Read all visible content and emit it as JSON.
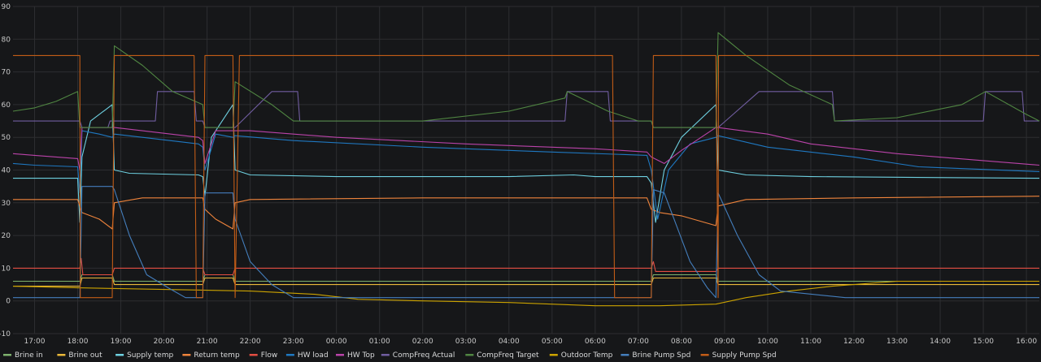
{
  "chart_data": {
    "type": "line",
    "title": "",
    "xlabel": "",
    "ylabel": "",
    "ylim": [
      -10,
      90
    ],
    "yticks": [
      -10,
      0,
      10,
      20,
      30,
      40,
      50,
      60,
      70,
      80,
      90
    ],
    "xlim": [
      16.5,
      40.3
    ],
    "xticks": [
      {
        "x": 17,
        "label": "17:00"
      },
      {
        "x": 18,
        "label": "18:00"
      },
      {
        "x": 19,
        "label": "19:00"
      },
      {
        "x": 20,
        "label": "20:00"
      },
      {
        "x": 21,
        "label": "21:00"
      },
      {
        "x": 22,
        "label": "22:00"
      },
      {
        "x": 23,
        "label": "23:00"
      },
      {
        "x": 24,
        "label": "00:00"
      },
      {
        "x": 25,
        "label": "01:00"
      },
      {
        "x": 26,
        "label": "02:00"
      },
      {
        "x": 27,
        "label": "03:00"
      },
      {
        "x": 28,
        "label": "04:00"
      },
      {
        "x": 29,
        "label": "05:00"
      },
      {
        "x": 30,
        "label": "06:00"
      },
      {
        "x": 31,
        "label": "07:00"
      },
      {
        "x": 32,
        "label": "08:00"
      },
      {
        "x": 33,
        "label": "09:00"
      },
      {
        "x": 34,
        "label": "10:00"
      },
      {
        "x": 35,
        "label": "11:00"
      },
      {
        "x": 36,
        "label": "12:00"
      },
      {
        "x": 37,
        "label": "13:00"
      },
      {
        "x": 38,
        "label": "14:00"
      },
      {
        "x": 39,
        "label": "15:00"
      },
      {
        "x": 40,
        "label": "16:00"
      }
    ],
    "grid": true,
    "legend_position": "bottom",
    "series": [
      {
        "name": "Brine in",
        "color": "#7eb26d",
        "points": [
          [
            16.5,
            6
          ],
          [
            18.05,
            6
          ],
          [
            18.1,
            8
          ],
          [
            18.8,
            8
          ],
          [
            18.85,
            6
          ],
          [
            20.9,
            6
          ],
          [
            20.95,
            8
          ],
          [
            21.6,
            8
          ],
          [
            21.65,
            6
          ],
          [
            31.3,
            6
          ],
          [
            31.35,
            8
          ],
          [
            32.8,
            8
          ],
          [
            32.85,
            6
          ],
          [
            40.3,
            6
          ]
        ]
      },
      {
        "name": "Brine out",
        "color": "#eab839",
        "points": [
          [
            16.5,
            4.5
          ],
          [
            18.05,
            4.5
          ],
          [
            18.1,
            7
          ],
          [
            18.8,
            7
          ],
          [
            18.85,
            5
          ],
          [
            20.9,
            5
          ],
          [
            20.95,
            7
          ],
          [
            21.6,
            7
          ],
          [
            21.65,
            5
          ],
          [
            31.3,
            5
          ],
          [
            31.35,
            7
          ],
          [
            32.8,
            7
          ],
          [
            32.85,
            5
          ],
          [
            40.3,
            5
          ]
        ]
      },
      {
        "name": "Supply temp",
        "color": "#6ed0e0",
        "points": [
          [
            16.5,
            37.5
          ],
          [
            18,
            37.5
          ],
          [
            18.05,
            24
          ],
          [
            18.1,
            44
          ],
          [
            18.3,
            55
          ],
          [
            18.8,
            60
          ],
          [
            18.85,
            40
          ],
          [
            19.2,
            39
          ],
          [
            20.8,
            38.5
          ],
          [
            20.9,
            38
          ],
          [
            20.95,
            32
          ],
          [
            21.1,
            50
          ],
          [
            21.6,
            60
          ],
          [
            21.65,
            40
          ],
          [
            22,
            38.5
          ],
          [
            24,
            38
          ],
          [
            26,
            38
          ],
          [
            28,
            38
          ],
          [
            29.5,
            38.5
          ],
          [
            30,
            38
          ],
          [
            31.2,
            38
          ],
          [
            31.3,
            36
          ],
          [
            31.4,
            24
          ],
          [
            31.6,
            40
          ],
          [
            32,
            50
          ],
          [
            32.8,
            60
          ],
          [
            32.85,
            40
          ],
          [
            33.5,
            38.5
          ],
          [
            35,
            38
          ],
          [
            40.3,
            37.5
          ]
        ]
      },
      {
        "name": "Return temp",
        "color": "#ef843c",
        "points": [
          [
            16.5,
            31
          ],
          [
            18,
            31
          ],
          [
            18.05,
            29
          ],
          [
            18.1,
            27
          ],
          [
            18.5,
            25
          ],
          [
            18.8,
            22
          ],
          [
            18.85,
            30
          ],
          [
            19.5,
            31.5
          ],
          [
            20.9,
            31.5
          ],
          [
            20.95,
            28
          ],
          [
            21.2,
            25
          ],
          [
            21.6,
            22
          ],
          [
            21.65,
            30
          ],
          [
            22,
            31
          ],
          [
            26,
            31.5
          ],
          [
            31.2,
            31.5
          ],
          [
            31.3,
            28
          ],
          [
            31.5,
            27
          ],
          [
            32,
            26
          ],
          [
            32.8,
            23
          ],
          [
            32.85,
            29
          ],
          [
            33.5,
            31
          ],
          [
            36,
            31.5
          ],
          [
            40.3,
            32
          ]
        ]
      },
      {
        "name": "Flow",
        "color": "#e24d42",
        "points": [
          [
            16.5,
            10
          ],
          [
            18.05,
            10
          ],
          [
            18.08,
            13
          ],
          [
            18.12,
            8
          ],
          [
            18.8,
            8
          ],
          [
            18.85,
            10
          ],
          [
            20.9,
            10
          ],
          [
            20.95,
            8
          ],
          [
            21.6,
            8
          ],
          [
            21.65,
            10
          ],
          [
            31.3,
            10
          ],
          [
            31.35,
            12
          ],
          [
            31.4,
            9
          ],
          [
            32.8,
            9
          ],
          [
            32.85,
            10
          ],
          [
            40.3,
            10
          ]
        ]
      },
      {
        "name": "HW load",
        "color": "#1f78c1",
        "points": [
          [
            16.5,
            42
          ],
          [
            17,
            41.5
          ],
          [
            18,
            41
          ],
          [
            18.05,
            33
          ],
          [
            18.1,
            52
          ],
          [
            18.5,
            51
          ],
          [
            18.8,
            50
          ],
          [
            18.85,
            51
          ],
          [
            19.5,
            50
          ],
          [
            20.8,
            48
          ],
          [
            20.9,
            47
          ],
          [
            20.95,
            40
          ],
          [
            21.2,
            51
          ],
          [
            21.6,
            50
          ],
          [
            21.65,
            50.5
          ],
          [
            23,
            49
          ],
          [
            26,
            47
          ],
          [
            29,
            45.5
          ],
          [
            31.2,
            44.5
          ],
          [
            31.3,
            40
          ],
          [
            31.45,
            25
          ],
          [
            31.7,
            40
          ],
          [
            32.2,
            48
          ],
          [
            32.8,
            50
          ],
          [
            32.85,
            50.5
          ],
          [
            34,
            47
          ],
          [
            36,
            44
          ],
          [
            37.5,
            41
          ],
          [
            40.3,
            39.5
          ]
        ]
      },
      {
        "name": "HW Top",
        "color": "#ba43a9",
        "points": [
          [
            16.5,
            45
          ],
          [
            17,
            44.5
          ],
          [
            18,
            43.5
          ],
          [
            18.05,
            40
          ],
          [
            18.1,
            53
          ],
          [
            18.8,
            53
          ],
          [
            18.85,
            53
          ],
          [
            19.5,
            52
          ],
          [
            20.8,
            50
          ],
          [
            20.9,
            49
          ],
          [
            20.95,
            42
          ],
          [
            21.2,
            52
          ],
          [
            21.6,
            52
          ],
          [
            22,
            52
          ],
          [
            24,
            50
          ],
          [
            27,
            48
          ],
          [
            30,
            46.5
          ],
          [
            31.2,
            45.5
          ],
          [
            31.3,
            44
          ],
          [
            31.6,
            42
          ],
          [
            32,
            46
          ],
          [
            32.8,
            53
          ],
          [
            32.85,
            53
          ],
          [
            34,
            51
          ],
          [
            35,
            48
          ],
          [
            37,
            45
          ],
          [
            40.3,
            41.5
          ]
        ]
      },
      {
        "name": "CompFreq Actual",
        "color": "#705da0",
        "points": [
          [
            16.5,
            55
          ],
          [
            18.05,
            55
          ],
          [
            18.1,
            53
          ],
          [
            18.7,
            53
          ],
          [
            18.75,
            55
          ],
          [
            19.8,
            55
          ],
          [
            19.85,
            64
          ],
          [
            20.7,
            64
          ],
          [
            20.75,
            55
          ],
          [
            20.9,
            55
          ],
          [
            20.95,
            53
          ],
          [
            21.6,
            53
          ],
          [
            21.65,
            53
          ],
          [
            22.5,
            64
          ],
          [
            23.1,
            64
          ],
          [
            23.15,
            55
          ],
          [
            29.3,
            55
          ],
          [
            29.35,
            64
          ],
          [
            30.3,
            64
          ],
          [
            30.35,
            55
          ],
          [
            31.3,
            55
          ],
          [
            31.35,
            53
          ],
          [
            32.8,
            53
          ],
          [
            32.85,
            53
          ],
          [
            33.8,
            64
          ],
          [
            35.5,
            64
          ],
          [
            35.55,
            55
          ],
          [
            39,
            55
          ],
          [
            39.05,
            64
          ],
          [
            39.9,
            64
          ],
          [
            39.95,
            55
          ],
          [
            40.3,
            55
          ]
        ]
      },
      {
        "name": "CompFreq Target",
        "color": "#508642",
        "points": [
          [
            16.5,
            58
          ],
          [
            17,
            59
          ],
          [
            17.5,
            61
          ],
          [
            18,
            64
          ],
          [
            18.05,
            53
          ],
          [
            18.8,
            53
          ],
          [
            18.85,
            78
          ],
          [
            19.5,
            72
          ],
          [
            20.2,
            64
          ],
          [
            20.9,
            60
          ],
          [
            20.95,
            53
          ],
          [
            21.6,
            53
          ],
          [
            21.65,
            67
          ],
          [
            22.5,
            60
          ],
          [
            23,
            55
          ],
          [
            26,
            55
          ],
          [
            28,
            58
          ],
          [
            29.3,
            62
          ],
          [
            29.35,
            64
          ],
          [
            30.3,
            58
          ],
          [
            31,
            55
          ],
          [
            31.3,
            55
          ],
          [
            31.35,
            53
          ],
          [
            32.8,
            53
          ],
          [
            32.85,
            82
          ],
          [
            33.5,
            75
          ],
          [
            34.5,
            66
          ],
          [
            35.5,
            60
          ],
          [
            35.55,
            55
          ],
          [
            37,
            56
          ],
          [
            38.5,
            60
          ],
          [
            39.05,
            64
          ],
          [
            40,
            57
          ],
          [
            40.3,
            55
          ]
        ]
      },
      {
        "name": "Outdoor Temp",
        "color": "#cca300",
        "points": [
          [
            16.5,
            4.5
          ],
          [
            18,
            4
          ],
          [
            20,
            3.5
          ],
          [
            22,
            3
          ],
          [
            23.5,
            2
          ],
          [
            24.5,
            0.5
          ],
          [
            26,
            0
          ],
          [
            28,
            -0.5
          ],
          [
            30,
            -1.5
          ],
          [
            31.5,
            -1.5
          ],
          [
            32.8,
            -1
          ],
          [
            33.5,
            1
          ],
          [
            34.5,
            3
          ],
          [
            35.5,
            4.5
          ],
          [
            37,
            6
          ],
          [
            38.5,
            6
          ],
          [
            40.3,
            6
          ]
        ]
      },
      {
        "name": "Brine Pump Spd",
        "color": "#447ebc",
        "points": [
          [
            16.5,
            1
          ],
          [
            18.05,
            1
          ],
          [
            18.1,
            35
          ],
          [
            18.8,
            35
          ],
          [
            18.85,
            34
          ],
          [
            19.2,
            20
          ],
          [
            19.6,
            8
          ],
          [
            20.1,
            4
          ],
          [
            20.5,
            1
          ],
          [
            20.9,
            1
          ],
          [
            20.95,
            33
          ],
          [
            21.6,
            33
          ],
          [
            21.65,
            25
          ],
          [
            22.0,
            12
          ],
          [
            22.5,
            5
          ],
          [
            23.0,
            1
          ],
          [
            31.3,
            1
          ],
          [
            31.35,
            34
          ],
          [
            31.6,
            33
          ],
          [
            32.2,
            12
          ],
          [
            32.6,
            4
          ],
          [
            32.8,
            1
          ],
          [
            32.85,
            33
          ],
          [
            33.3,
            20
          ],
          [
            33.8,
            8
          ],
          [
            34.3,
            3
          ],
          [
            35.8,
            1
          ],
          [
            40.3,
            1
          ]
        ]
      },
      {
        "name": "Supply Pump Spd",
        "color": "#c15c17",
        "points": [
          [
            16.5,
            75
          ],
          [
            18.05,
            75
          ],
          [
            18.06,
            1
          ],
          [
            18.8,
            1
          ],
          [
            18.85,
            75
          ],
          [
            20.7,
            75
          ],
          [
            20.75,
            1
          ],
          [
            20.9,
            1
          ],
          [
            20.95,
            75
          ],
          [
            21.6,
            75
          ],
          [
            21.65,
            1
          ],
          [
            21.75,
            75
          ],
          [
            30.4,
            75
          ],
          [
            30.45,
            1
          ],
          [
            31.3,
            1
          ],
          [
            31.35,
            75
          ],
          [
            32.8,
            75
          ],
          [
            32.85,
            1
          ],
          [
            32.86,
            75
          ],
          [
            40.3,
            75
          ]
        ]
      }
    ]
  }
}
